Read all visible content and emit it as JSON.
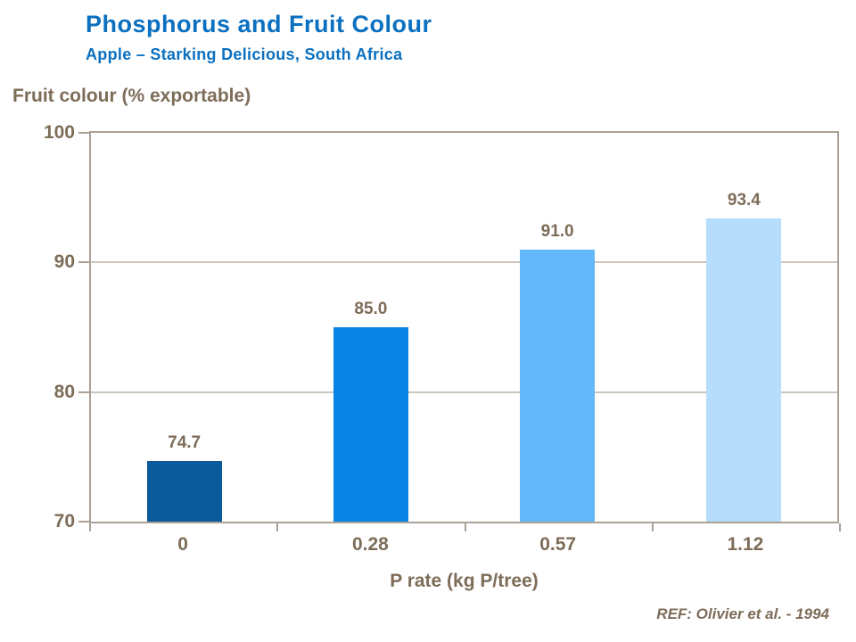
{
  "title": "Phosphorus and Fruit Colour",
  "subtitle": "Apple – Starking Delicious, South Africa",
  "reference": "REF: Olivier et al. - 1994",
  "colors": {
    "title_blue": "#0b70c0",
    "text_brown": "#7d6c58",
    "axis_line": "#aba196",
    "grid_line": "#cdc5bb",
    "bar_colors": [
      "#0b5a9b",
      "#0884e4",
      "#63b8f9",
      "#b6defc"
    ]
  },
  "chart_data": {
    "type": "bar",
    "title": "Phosphorus and Fruit Colour",
    "subtitle": "Apple – Starking Delicious, South Africa",
    "categories": [
      "0",
      "0.28",
      "0.57",
      "1.12"
    ],
    "values": [
      74.7,
      85.0,
      91.0,
      93.4
    ],
    "value_labels": [
      "74.7",
      "85.0",
      "91.0",
      "93.4"
    ],
    "xlabel": "P rate (kg P/tree)",
    "ylabel": "Fruit colour (% exportable)",
    "ylim": [
      70,
      100
    ],
    "yticks": [
      100,
      90,
      80,
      70
    ],
    "gridlines": [
      90,
      80
    ],
    "grid": "horizontal",
    "legend_position": "none",
    "series_name": "Fruit colour (% exportable)"
  }
}
